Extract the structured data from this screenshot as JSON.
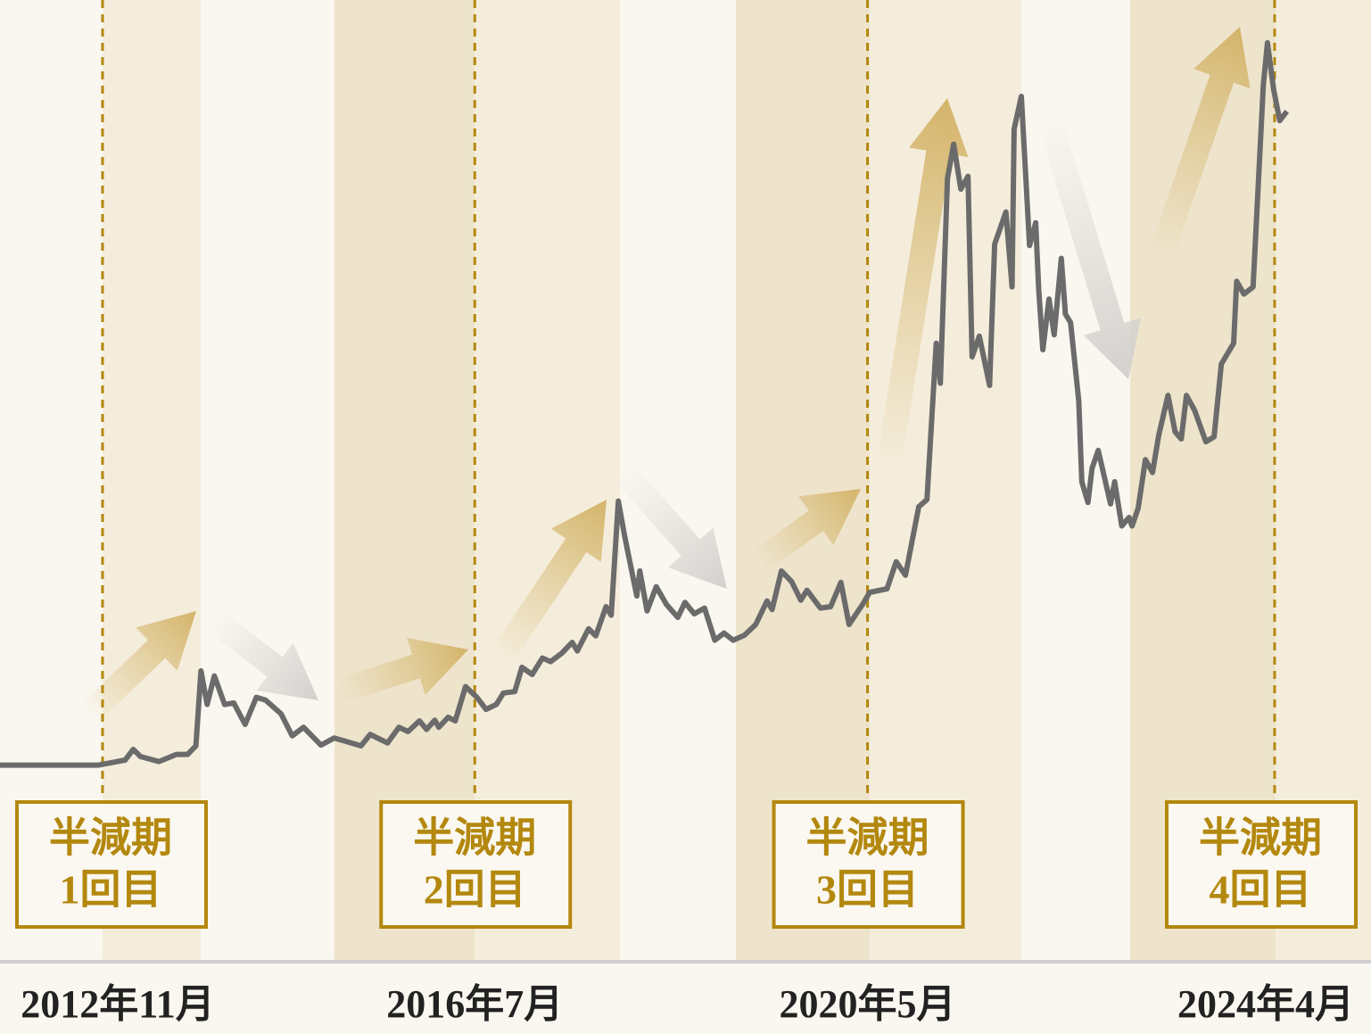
{
  "chart_data": {
    "type": "line",
    "xlim": [
      2011.83,
      2025.2
    ],
    "ylim": [
      0,
      105
    ],
    "grid": false,
    "halvings": [
      {
        "x": 2012.83,
        "date": "2012年11月",
        "label": [
          "半減期",
          "1回目"
        ]
      },
      {
        "x": 2016.46,
        "date": "2016年7月",
        "label": [
          "半減期",
          "2回目"
        ]
      },
      {
        "x": 2020.29,
        "date": "2020年5月",
        "label": [
          "半減期",
          "3回目"
        ]
      },
      {
        "x": 2024.26,
        "date": "2024年4月",
        "label": [
          "半減期",
          "4回目"
        ]
      }
    ],
    "halving_color": "#b3880e",
    "series": [
      {
        "color": "#6b6b6b",
        "x": [
          2011.83,
          2012.79,
          2013.05,
          2013.13,
          2013.2,
          2013.38,
          2013.55,
          2013.66,
          2013.74,
          2013.79,
          2013.85,
          2013.92,
          2014.02,
          2014.11,
          2014.22,
          2014.33,
          2014.42,
          2014.57,
          2014.68,
          2014.79,
          2014.96,
          2015.09,
          2015.35,
          2015.44,
          2015.61,
          2015.72,
          2015.81,
          2015.92,
          2015.99,
          2016.07,
          2016.11,
          2016.2,
          2016.27,
          2016.37,
          2016.48,
          2016.57,
          2016.67,
          2016.74,
          2016.85,
          2016.92,
          2017.02,
          2017.12,
          2017.2,
          2017.31,
          2017.41,
          2017.46,
          2017.57,
          2017.64,
          2017.74,
          2017.79,
          2017.86,
          2017.92,
          2018.04,
          2018.07,
          2018.14,
          2018.23,
          2018.33,
          2018.44,
          2018.51,
          2018.6,
          2018.7,
          2018.8,
          2018.89,
          2018.98,
          2019.09,
          2019.2,
          2019.31,
          2019.36,
          2019.45,
          2019.55,
          2019.64,
          2019.7,
          2019.83,
          2019.93,
          2020.03,
          2020.11,
          2020.25,
          2020.31,
          2020.48,
          2020.57,
          2020.66,
          2020.79,
          2020.87,
          2020.96,
          2021.0,
          2021.07,
          2021.13,
          2021.2,
          2021.27,
          2021.31,
          2021.38,
          2021.48,
          2021.53,
          2021.64,
          2021.7,
          2021.72,
          2021.79,
          2021.87,
          2021.93,
          2021.96,
          2022.0,
          2022.06,
          2022.11,
          2022.18,
          2022.22,
          2022.27,
          2022.35,
          2022.38,
          2022.44,
          2022.48,
          2022.54,
          2022.61,
          2022.66,
          2022.7,
          2022.77,
          2022.84,
          2022.87,
          2022.93,
          2023.0,
          2023.07,
          2023.13,
          2023.22,
          2023.29,
          2023.35,
          2023.4,
          2023.48,
          2023.59,
          2023.67,
          2023.74,
          2023.86,
          2023.89,
          2023.96,
          2024.05,
          2024.15,
          2024.19,
          2024.25,
          2024.31,
          2024.38
        ],
        "values": [
          0.3,
          0.3,
          1.0,
          2.5,
          1.5,
          0.8,
          1.8,
          1.8,
          3.0,
          13.5,
          8.8,
          12.8,
          8.8,
          9.0,
          6.0,
          9.8,
          9.4,
          7.5,
          4.4,
          5.6,
          3.1,
          4.1,
          3.0,
          4.6,
          3.4,
          5.6,
          5.0,
          6.5,
          5.3,
          6.6,
          5.6,
          7.0,
          6.5,
          11.3,
          9.8,
          8.1,
          8.8,
          10.4,
          10.6,
          14.0,
          13.0,
          15.3,
          14.8,
          16.0,
          17.5,
          16.3,
          19.4,
          18.4,
          22.5,
          21.3,
          37.3,
          32.5,
          24.0,
          27.5,
          21.9,
          25.3,
          22.8,
          21.0,
          23.1,
          21.5,
          22.3,
          17.8,
          18.8,
          17.8,
          18.5,
          20.0,
          23.3,
          22.1,
          27.5,
          26.0,
          23.4,
          24.8,
          22.3,
          22.5,
          25.9,
          20.0,
          23.0,
          24.5,
          25.0,
          28.8,
          26.9,
          36.5,
          37.5,
          59.4,
          53.8,
          82.5,
          87.3,
          81.0,
          82.8,
          57.5,
          60.4,
          53.5,
          73.3,
          77.8,
          67.3,
          89.4,
          94.0,
          73.1,
          76.3,
          66.9,
          58.5,
          65.6,
          60.6,
          71.3,
          63.5,
          62.3,
          51.3,
          40.0,
          37.1,
          41.9,
          44.4,
          40.0,
          36.9,
          40.0,
          33.8,
          35.0,
          33.8,
          36.3,
          43.1,
          41.3,
          46.5,
          52.1,
          47.0,
          46.0,
          52.1,
          50.0,
          45.6,
          46.3,
          56.5,
          59.4,
          68.1,
          66.3,
          67.3,
          95.6,
          101.5,
          95.0,
          90.6,
          91.9
        ]
      }
    ]
  }
}
